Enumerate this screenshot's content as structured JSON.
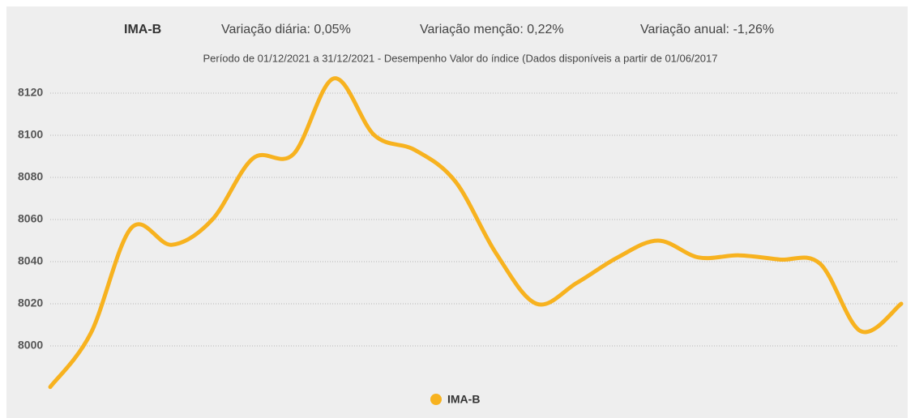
{
  "chart_data": {
    "type": "line",
    "title": "IMA-B",
    "stats": [
      "Variação diária: 0,05%",
      "Variação menção: 0,22%",
      "Variação anual: -1,26%"
    ],
    "subtitle": "Período de 01/12/2021 a 31/12/2021 - Desempenho Valor do índice (Dados disponíveis a partir de 01/06/2017",
    "categories": [
      null,
      null,
      null,
      null,
      null,
      null,
      null,
      null,
      null,
      null,
      null,
      null,
      null,
      null,
      null,
      null,
      null,
      null,
      null,
      null,
      null,
      null
    ],
    "series": [
      {
        "name": "IMA-B",
        "color": "#f7b21f",
        "values": [
          7980.5,
          8006,
          8056,
          8048,
          8060,
          8089,
          8091,
          8127,
          8100,
          8093,
          8078,
          8044,
          8020,
          8030,
          8042,
          8050,
          8042,
          8043,
          8041,
          8039,
          8007,
          8020
        ]
      }
    ],
    "ylim": [
      7980,
      8130
    ],
    "yticks": [
      8000,
      8020,
      8040,
      8060,
      8080,
      8100,
      8120
    ],
    "grid": true
  }
}
